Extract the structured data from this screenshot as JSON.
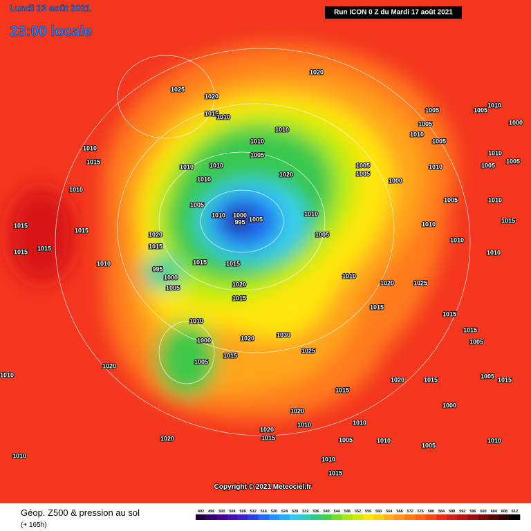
{
  "header": {
    "date": "Lundi 23 août 2021",
    "time": "23:00 locale",
    "run": "Run ICON 0 Z du Mardi 17 août 2021"
  },
  "map": {
    "isobar_labels": [
      1025,
      1020,
      1020,
      1015,
      1010,
      1010,
      1010,
      1005,
      1020,
      1010,
      1010,
      1010,
      1005,
      1010,
      1000,
      995,
      1005,
      1010,
      1005,
      1020,
      1015,
      1015,
      1015,
      995,
      1000,
      1005,
      1020,
      1015,
      1010,
      1000,
      1005,
      1020,
      1015,
      1030,
      1025,
      1010,
      1020,
      1025,
      1015,
      1005,
      1005,
      1010,
      1000,
      1005,
      1010,
      1005,
      1005,
      1005,
      1000,
      1010,
      1005,
      1005,
      1010,
      1005,
      1010,
      1010,
      1010,
      1015,
      1010,
      1015,
      1005,
      1010,
      1015,
      1010,
      1015,
      1015,
      1015,
      1015,
      1010,
      1020,
      1010,
      1020,
      1010,
      1020,
      1015,
      1020,
      1015,
      1020,
      1015,
      1000,
      1005,
      1015,
      1010,
      1005,
      1010,
      1010,
      1015,
      1005,
      1010,
      1010,
      1015
    ],
    "copyright": "Copyright © 2021 Meteociel.fr"
  },
  "legend": {
    "title": "Géop. Z500 & pression au sol",
    "lead": "(+ 165h)",
    "ticks": [
      492,
      496,
      500,
      504,
      508,
      512,
      516,
      520,
      524,
      528,
      532,
      536,
      540,
      544,
      548,
      552,
      556,
      560,
      564,
      568,
      572,
      576,
      580,
      584,
      588,
      592,
      596,
      600,
      604,
      608,
      612
    ]
  }
}
